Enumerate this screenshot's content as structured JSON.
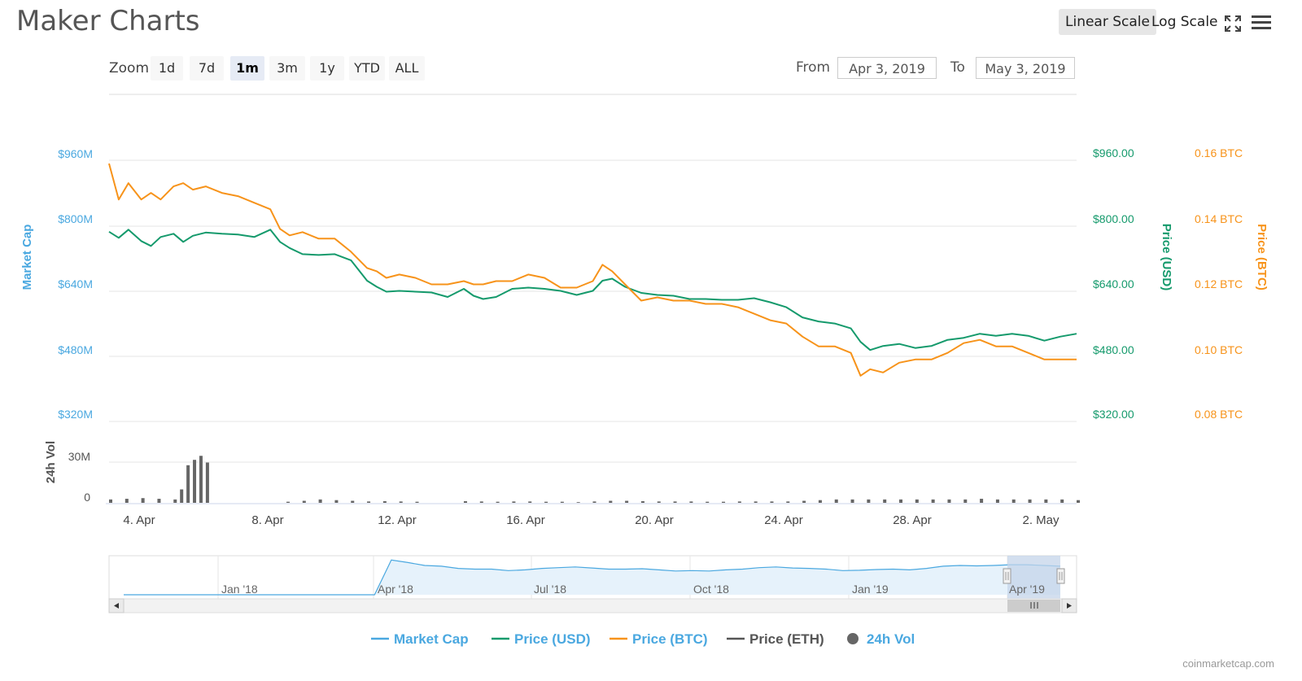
{
  "header": {
    "title": "Maker Charts",
    "linear_scale": "Linear Scale",
    "log_scale": "Log Scale",
    "fullscreen_icon": "expand-icon",
    "menu_icon": "hamburger-icon"
  },
  "zoom": {
    "label": "Zoom",
    "buttons": [
      "1d",
      "7d",
      "1m",
      "3m",
      "1y",
      "YTD",
      "ALL"
    ],
    "active": "1m"
  },
  "range": {
    "from_label": "From",
    "from_value": "Apr 3, 2019",
    "to_label": "To",
    "to_value": "May 3, 2019"
  },
  "colors": {
    "market_cap": "#4aa8e0",
    "price_usd": "#159a6c",
    "price_btc": "#f7931a",
    "price_eth": "#555555",
    "volume": "#666666",
    "navigator_fill": "#e6f2fb"
  },
  "chart_data": {
    "type": "line",
    "title": "",
    "x_ticks": [
      "4. Apr",
      "8. Apr",
      "12. Apr",
      "16. Apr",
      "20. Apr",
      "24. Apr",
      "28. Apr",
      "2. May"
    ],
    "x_range": [
      "Apr 3, 2019",
      "May 3, 2019"
    ],
    "axes": {
      "market_cap": {
        "label": "Market Cap",
        "ticks": [
          "$320M",
          "$480M",
          "$640M",
          "$800M",
          "$960M"
        ],
        "range": [
          320,
          960
        ]
      },
      "price_usd": {
        "label": "Price (USD)",
        "ticks": [
          "$320.00",
          "$480.00",
          "$640.00",
          "$800.00",
          "$960.00"
        ],
        "range": [
          320,
          960
        ]
      },
      "price_btc": {
        "label": "Price (BTC)",
        "ticks": [
          "0.08 BTC",
          "0.10 BTC",
          "0.12 BTC",
          "0.14 BTC",
          "0.16 BTC"
        ],
        "range": [
          0.08,
          0.16
        ]
      },
      "volume": {
        "label": "24h Vol",
        "ticks": [
          "0",
          "30M"
        ],
        "range": [
          0,
          60
        ]
      }
    },
    "series": [
      {
        "name": "Price (USD)",
        "axis": "price_usd",
        "x": [
          3.0,
          3.3,
          3.6,
          4.0,
          4.3,
          4.6,
          5.0,
          5.3,
          5.6,
          6.0,
          6.5,
          7.0,
          7.5,
          8.0,
          8.3,
          8.6,
          9.0,
          9.5,
          10.0,
          10.5,
          11.0,
          11.3,
          11.6,
          12.0,
          12.5,
          13.0,
          13.5,
          14.0,
          14.3,
          14.6,
          15.0,
          15.5,
          16.0,
          16.5,
          17.0,
          17.5,
          18.0,
          18.3,
          18.6,
          19.0,
          19.5,
          20.0,
          20.5,
          21.0,
          21.5,
          22.0,
          22.5,
          23.0,
          23.5,
          24.0,
          24.5,
          25.0,
          25.5,
          26.0,
          26.3,
          26.6,
          27.0,
          27.5,
          28.0,
          28.5,
          29.0,
          29.5,
          30.0,
          30.5,
          31.0,
          31.5,
          32.0,
          32.5,
          33.0
        ],
        "values": [
          785,
          770,
          790,
          762,
          750,
          772,
          780,
          760,
          775,
          783,
          780,
          778,
          772,
          790,
          760,
          745,
          730,
          728,
          730,
          715,
          665,
          650,
          638,
          640,
          638,
          636,
          625,
          645,
          628,
          620,
          625,
          645,
          648,
          645,
          640,
          630,
          640,
          665,
          670,
          650,
          635,
          630,
          628,
          620,
          620,
          618,
          618,
          622,
          612,
          600,
          575,
          565,
          560,
          548,
          515,
          495,
          505,
          510,
          500,
          505,
          520,
          525,
          535,
          530,
          535,
          530,
          518,
          528,
          535
        ]
      },
      {
        "name": "Price (BTC)",
        "axis": "price_btc",
        "x": [
          3.0,
          3.3,
          3.6,
          4.0,
          4.3,
          4.6,
          5.0,
          5.3,
          5.6,
          6.0,
          6.5,
          7.0,
          7.5,
          8.0,
          8.3,
          8.6,
          9.0,
          9.5,
          10.0,
          10.5,
          11.0,
          11.3,
          11.6,
          12.0,
          12.5,
          13.0,
          13.5,
          14.0,
          14.3,
          14.6,
          15.0,
          15.5,
          16.0,
          16.5,
          17.0,
          17.5,
          18.0,
          18.3,
          18.6,
          19.0,
          19.5,
          20.0,
          20.5,
          21.0,
          21.5,
          22.0,
          22.5,
          23.0,
          23.5,
          24.0,
          24.5,
          25.0,
          25.5,
          26.0,
          26.3,
          26.6,
          27.0,
          27.5,
          28.0,
          28.5,
          29.0,
          29.5,
          30.0,
          30.5,
          31.0,
          31.5,
          32.0,
          32.5,
          33.0
        ],
        "values": [
          0.159,
          0.148,
          0.153,
          0.148,
          0.15,
          0.148,
          0.152,
          0.153,
          0.151,
          0.152,
          0.15,
          0.149,
          0.147,
          0.145,
          0.139,
          0.137,
          0.138,
          0.136,
          0.136,
          0.132,
          0.127,
          0.126,
          0.124,
          0.125,
          0.124,
          0.122,
          0.122,
          0.123,
          0.122,
          0.122,
          0.123,
          0.123,
          0.125,
          0.124,
          0.121,
          0.121,
          0.123,
          0.128,
          0.126,
          0.122,
          0.117,
          0.118,
          0.117,
          0.117,
          0.116,
          0.116,
          0.115,
          0.113,
          0.111,
          0.11,
          0.106,
          0.103,
          0.103,
          0.101,
          0.094,
          0.096,
          0.095,
          0.098,
          0.099,
          0.099,
          0.101,
          0.104,
          0.105,
          0.103,
          0.103,
          0.101,
          0.099,
          0.099,
          0.099
        ]
      },
      {
        "name": "24h Vol",
        "axis": "volume",
        "type": "bar",
        "x": [
          3.0,
          3.5,
          4.0,
          4.5,
          5.0,
          5.2,
          5.4,
          5.6,
          5.8,
          6.0,
          6.5,
          7.0,
          7.5,
          8.0,
          8.5,
          9.0,
          9.5,
          10.0,
          10.5,
          11.0,
          11.5,
          12.0,
          12.5,
          13.0,
          13.5,
          14.0,
          14.5,
          15.0,
          15.5,
          16.0,
          16.5,
          17.0,
          17.5,
          18.0,
          18.5,
          19.0,
          19.5,
          20.0,
          20.5,
          21.0,
          21.5,
          22.0,
          22.5,
          23.0,
          23.5,
          24.0,
          24.5,
          25.0,
          25.5,
          26.0,
          26.5,
          27.0,
          27.5,
          28.0,
          28.5,
          29.0,
          29.5,
          30.0,
          30.5,
          31.0,
          31.5,
          32.0,
          32.5,
          33.0
        ],
        "values": [
          2.5,
          3,
          3.5,
          3,
          2.5,
          10,
          28,
          32,
          35,
          30,
          0,
          0,
          0,
          0,
          0.8,
          1.5,
          2.5,
          2,
          1.5,
          1,
          1.2,
          1,
          0.8,
          0,
          0,
          1.2,
          1,
          0.8,
          1,
          1,
          0.8,
          0.8,
          0.5,
          1,
          1.5,
          1.5,
          1.2,
          1,
          1,
          1,
          0.8,
          0.8,
          1,
          1,
          1,
          1,
          1.5,
          2,
          2.5,
          2.5,
          2.5,
          2.5,
          2.5,
          2.5,
          2.5,
          2.5,
          2.5,
          3,
          2.5,
          2.5,
          2.5,
          2.5,
          2.5,
          2
        ]
      }
    ],
    "legend": [
      "Market Cap",
      "Price (USD)",
      "Price (BTC)",
      "Price (ETH)",
      "24h Vol"
    ],
    "legend_position": "bottom",
    "grid": true,
    "navigator": {
      "ticks": [
        "Jan '18",
        "Apr '18",
        "Jul '18",
        "Oct '18",
        "Jan '19",
        "Apr '19"
      ],
      "values": [
        0,
        0,
        0,
        0,
        0,
        0,
        0,
        0,
        0,
        0,
        0,
        0,
        0,
        0,
        0,
        0,
        95,
        88,
        80,
        78,
        72,
        70,
        70,
        66,
        68,
        72,
        74,
        76,
        73,
        70,
        70,
        71,
        68,
        65,
        66,
        65,
        68,
        70,
        74,
        76,
        73,
        72,
        70,
        66,
        67,
        69,
        70,
        68,
        72,
        78,
        80,
        79,
        80,
        82,
        82,
        80,
        78
      ]
    }
  },
  "watermark": "coinmarketcap.com"
}
